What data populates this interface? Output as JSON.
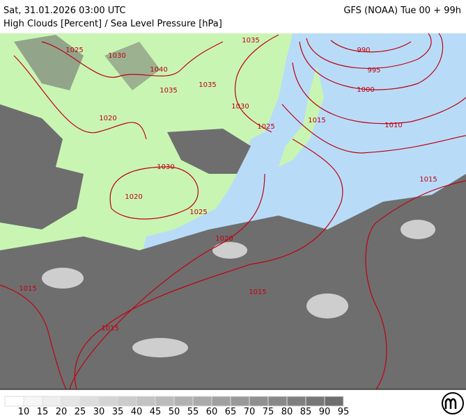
{
  "header": {
    "left": "Sat, 31.01.2026 03:00 UTC",
    "right": "GFS (NOAA) Tue 00 + 99h",
    "subtitle": "High Clouds [Percent] / Sea Level Pressure [hPa]"
  },
  "isobar_labels": [
    "990",
    "995",
    "1000",
    "1010",
    "1015",
    "1015",
    "1020",
    "1025",
    "1030",
    "1035",
    "1040",
    "1035",
    "1030",
    "1025",
    "1020",
    "1015",
    "1015",
    "1015",
    "1030",
    "1025",
    "1035",
    "1020"
  ],
  "legend": {
    "labels": [
      10,
      15,
      20,
      25,
      30,
      35,
      40,
      45,
      50,
      55,
      60,
      65,
      70,
      75,
      80,
      85,
      90,
      95
    ]
  }
}
